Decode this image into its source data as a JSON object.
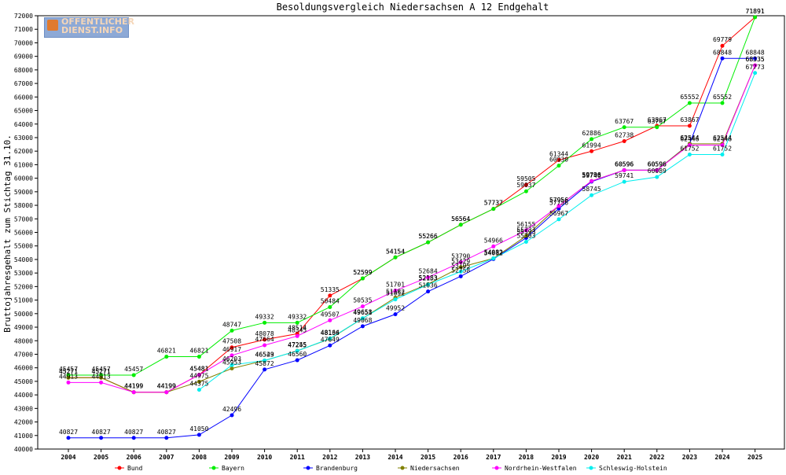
{
  "logo": {
    "line1": "OFFENTLICHER",
    "line2": "DIENST.INFO"
  },
  "chart_data": {
    "type": "line",
    "title": "Besoldungsvergleich Niedersachsen A 12 Endgehalt",
    "ylabel": "Bruttojahresgehalt zum Stichtag 31.10.",
    "xlabel": "",
    "ylim": [
      40000,
      72000
    ],
    "y_ticks": [
      40000,
      41000,
      42000,
      43000,
      44000,
      45000,
      46000,
      47000,
      48000,
      49000,
      50000,
      51000,
      52000,
      53000,
      54000,
      55000,
      56000,
      57000,
      58000,
      59000,
      60000,
      61000,
      62000,
      63000,
      64000,
      65000,
      66000,
      67000,
      68000,
      69000,
      70000,
      71000,
      72000
    ],
    "categories": [
      "2004",
      "2005",
      "2006",
      "2007",
      "2008",
      "2009",
      "2010",
      "2011",
      "2012",
      "2013",
      "2014",
      "2015",
      "2016",
      "2017",
      "2018",
      "2019",
      "2020",
      "2021",
      "2022",
      "2023",
      "2024",
      "2025"
    ],
    "grid": false,
    "legend_position": "bottom",
    "series": [
      {
        "name": "Bund",
        "color": "#ff0000",
        "values": [
          45271,
          45271,
          44199,
          44199,
          45481,
          47508,
          48078,
          48514,
          51335,
          52599,
          54154,
          55266,
          56564,
          57737,
          59505,
          61344,
          61994,
          62738,
          63867,
          63867,
          69779,
          71891
        ]
      },
      {
        "name": "Bayern",
        "color": "#00ee00",
        "values": [
          45457,
          45457,
          45457,
          46821,
          46821,
          48747,
          49332,
          49332,
          50484,
          52599,
          54154,
          55266,
          56564,
          57737,
          59037,
          60930,
          62886,
          63767,
          63767,
          65552,
          65552,
          71891
        ]
      },
      {
        "name": "Brandenburg",
        "color": "#0000ff",
        "values": [
          40827,
          40827,
          40827,
          40827,
          41050,
          42496,
          45872,
          46560,
          47649,
          49068,
          49952,
          51636,
          52758,
          54032,
          55593,
          57756,
          59746,
          60596,
          60596,
          62544,
          68848,
          68848
        ]
      },
      {
        "name": "Niedersachsen",
        "color": "#808000",
        "values": [
          45271,
          45271,
          44199,
          44199,
          44975,
          45953,
          46529,
          47255,
          48136,
          49651,
          51182,
          52183,
          53429,
          54082,
          55733,
          57956,
          59796,
          60596,
          60596,
          62544,
          62544,
          68335
        ]
      },
      {
        "name": "Nordrhein-Westfalen",
        "color": "#ff00ff",
        "values": [
          44913,
          44913,
          44199,
          44199,
          45481,
          46917,
          47664,
          48345,
          49507,
          50535,
          51701,
          52684,
          53790,
          54966,
          56155,
          57956,
          59790,
          60596,
          60596,
          62446,
          62446,
          68335
        ]
      },
      {
        "name": "Schleswig-Holstein",
        "color": "#00eeee",
        "values": [
          null,
          null,
          null,
          null,
          44375,
          46203,
          46543,
          47245,
          48164,
          49658,
          51052,
          52153,
          53105,
          54082,
          55303,
          56967,
          58745,
          59741,
          60089,
          61752,
          61752,
          67773
        ]
      }
    ]
  }
}
